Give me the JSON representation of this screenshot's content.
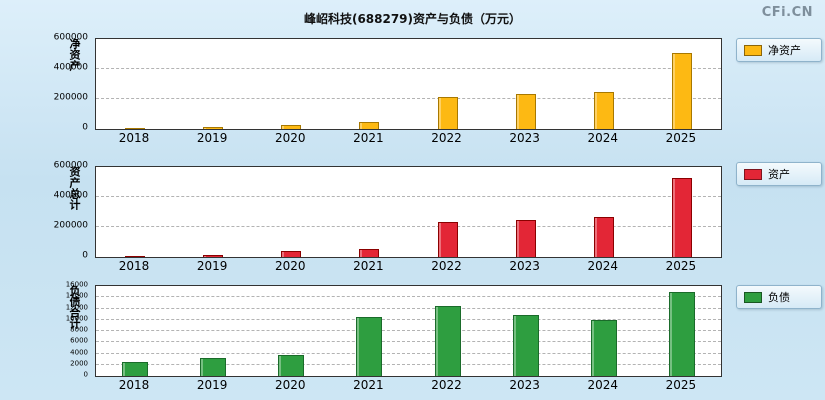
{
  "header": {
    "title": "峰岹科技(688279)资产与负债（万元）",
    "watermark": "CFi.CN"
  },
  "chart_data": [
    {
      "type": "bar",
      "name": "net-assets",
      "ylabel": "净资产",
      "legend": "净资产",
      "color": "#FDB913",
      "border_color": "#A87800",
      "categories": [
        "2018",
        "2019",
        "2020",
        "2021",
        "2022",
        "2023",
        "2024",
        "2025"
      ],
      "values": [
        8000,
        12000,
        30000,
        45000,
        215000,
        235000,
        250000,
        505000
      ],
      "ylim": [
        0,
        600000
      ],
      "yticks": [
        0,
        200000,
        400000,
        600000
      ],
      "grid": true,
      "legend_position": "right-top"
    },
    {
      "type": "bar",
      "name": "total-assets",
      "ylabel": "资产总计",
      "legend": "资产",
      "color": "#E32636",
      "border_color": "#8B0000",
      "categories": [
        "2018",
        "2019",
        "2020",
        "2021",
        "2022",
        "2023",
        "2024",
        "2025"
      ],
      "values": [
        9000,
        15000,
        38000,
        55000,
        235000,
        250000,
        270000,
        525000
      ],
      "ylim": [
        0,
        600000
      ],
      "yticks": [
        0,
        200000,
        400000,
        600000
      ],
      "grid": true,
      "legend_position": "right-top"
    },
    {
      "type": "bar",
      "name": "total-liabilities",
      "ylabel": "负债合计",
      "legend": "负债",
      "color": "#2E9E40",
      "border_color": "#1A6B2A",
      "categories": [
        "2018",
        "2019",
        "2020",
        "2021",
        "2022",
        "2023",
        "2024",
        "2025"
      ],
      "values": [
        2500,
        3200,
        3800,
        10500,
        12500,
        10800,
        10000,
        15000
      ],
      "ylim": [
        0,
        16000
      ],
      "yticks": [
        0,
        2000,
        4000,
        6000,
        8000,
        10000,
        12000,
        14000,
        16000
      ],
      "grid": true,
      "legend_position": "right-top"
    }
  ]
}
